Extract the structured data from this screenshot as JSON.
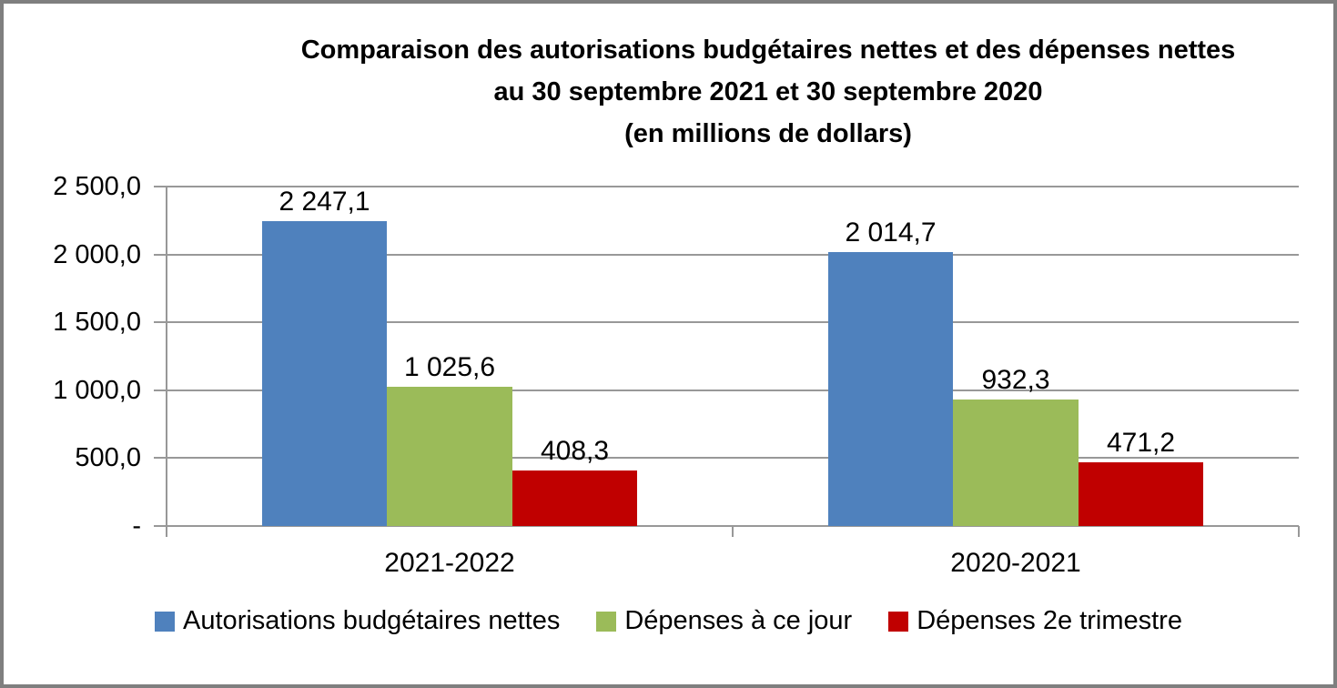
{
  "chart_data": {
    "type": "bar",
    "title": "Comparaison des autorisations budgétaires nettes et des dépenses nettes au 30 septembre 2021 et 30 septembre 2020 (en millions de dollars)",
    "title_lines": [
      "Comparaison des autorisations budgétaires nettes et des dépenses nettes",
      "au 30 septembre 2021 et 30 septembre 2020",
      "(en millions de dollars)"
    ],
    "categories": [
      "2021-2022",
      "2020-2021"
    ],
    "series": [
      {
        "name": "Autorisations budgétaires nettes",
        "color": "#4F81BD",
        "values": [
          2247.1,
          2014.7
        ],
        "value_labels": [
          "2 247,1",
          "2 014,7"
        ]
      },
      {
        "name": "Dépenses à ce jour",
        "color": "#9BBB59",
        "values": [
          1025.6,
          932.3
        ],
        "value_labels": [
          "1 025,6",
          "932,3"
        ]
      },
      {
        "name": "Dépenses 2e trimestre",
        "color": "#C00000",
        "values": [
          408.3,
          471.2
        ],
        "value_labels": [
          "408,3",
          "471,2"
        ]
      }
    ],
    "y_axis": {
      "min": 0,
      "max": 2500,
      "step": 500,
      "tick_labels": [
        "2 500,0",
        "2 000,0",
        "1 500,0",
        "1 000,0",
        "500,0",
        "-"
      ]
    },
    "grid": true,
    "legend_position": "bottom"
  },
  "style": {
    "grid_color": "#989898",
    "axis_color": "#989898",
    "frame_color": "#7F7F7F",
    "background": "#FFFFFF",
    "text_color": "#000000"
  }
}
